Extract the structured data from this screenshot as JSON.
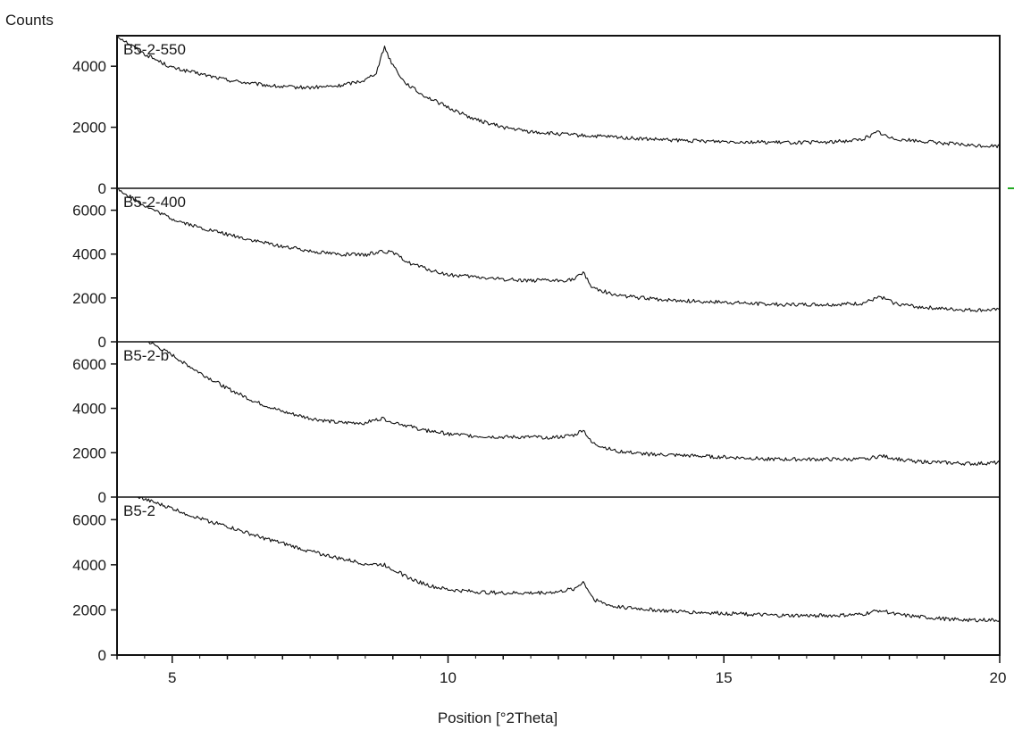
{
  "chart_data": {
    "type": "line",
    "title": "",
    "ylabel": "Counts",
    "xlabel": "Position [°2Theta]",
    "xlim": [
      4,
      20
    ],
    "x_ticks": [
      5,
      10,
      15,
      20
    ],
    "x_tick_labels": [
      "5",
      "10",
      "15",
      "20"
    ],
    "grid": false,
    "legend": "none",
    "series": [
      {
        "name": "B5-2-550",
        "ylim": [
          0,
          5000
        ],
        "y_ticks": [
          0,
          2000,
          4000
        ],
        "y_tick_labels": [
          "0",
          "2000",
          "4000"
        ],
        "points": [
          [
            4.0,
            5000
          ],
          [
            4.5,
            4400
          ],
          [
            5.0,
            3950
          ],
          [
            5.5,
            3750
          ],
          [
            6.0,
            3550
          ],
          [
            6.5,
            3420
          ],
          [
            7.0,
            3320
          ],
          [
            7.5,
            3300
          ],
          [
            8.0,
            3350
          ],
          [
            8.5,
            3550
          ],
          [
            8.7,
            3800
          ],
          [
            8.85,
            4650
          ],
          [
            8.95,
            4200
          ],
          [
            9.2,
            3500
          ],
          [
            9.5,
            3100
          ],
          [
            10.0,
            2650
          ],
          [
            10.5,
            2250
          ],
          [
            11.0,
            2000
          ],
          [
            11.5,
            1850
          ],
          [
            12.0,
            1780
          ],
          [
            12.5,
            1720
          ],
          [
            13.0,
            1680
          ],
          [
            13.5,
            1620
          ],
          [
            14.0,
            1580
          ],
          [
            14.5,
            1550
          ],
          [
            15.0,
            1540
          ],
          [
            15.5,
            1520
          ],
          [
            16.0,
            1500
          ],
          [
            16.5,
            1500
          ],
          [
            17.0,
            1520
          ],
          [
            17.5,
            1600
          ],
          [
            17.8,
            1850
          ],
          [
            18.0,
            1650
          ],
          [
            18.5,
            1550
          ],
          [
            19.0,
            1480
          ],
          [
            19.5,
            1400
          ],
          [
            20.0,
            1380
          ]
        ]
      },
      {
        "name": "B5-2-400",
        "ylim": [
          0,
          7000
        ],
        "y_ticks": [
          0,
          2000,
          4000,
          6000
        ],
        "y_tick_labels": [
          "0",
          "2000",
          "4000",
          "6000"
        ],
        "points": [
          [
            4.0,
            7000
          ],
          [
            4.5,
            6200
          ],
          [
            5.0,
            5600
          ],
          [
            5.5,
            5200
          ],
          [
            6.0,
            4900
          ],
          [
            6.5,
            4600
          ],
          [
            7.0,
            4350
          ],
          [
            7.5,
            4150
          ],
          [
            8.0,
            4000
          ],
          [
            8.5,
            3950
          ],
          [
            8.8,
            4150
          ],
          [
            9.0,
            4050
          ],
          [
            9.3,
            3600
          ],
          [
            9.7,
            3250
          ],
          [
            10.0,
            3050
          ],
          [
            10.5,
            2950
          ],
          [
            11.0,
            2850
          ],
          [
            11.5,
            2800
          ],
          [
            12.0,
            2780
          ],
          [
            12.3,
            2850
          ],
          [
            12.45,
            3200
          ],
          [
            12.6,
            2500
          ],
          [
            13.0,
            2150
          ],
          [
            13.5,
            2000
          ],
          [
            14.0,
            1900
          ],
          [
            14.5,
            1850
          ],
          [
            15.0,
            1800
          ],
          [
            15.5,
            1750
          ],
          [
            16.0,
            1700
          ],
          [
            16.5,
            1700
          ],
          [
            17.0,
            1700
          ],
          [
            17.5,
            1750
          ],
          [
            17.85,
            2050
          ],
          [
            18.1,
            1750
          ],
          [
            18.5,
            1600
          ],
          [
            19.0,
            1500
          ],
          [
            19.5,
            1450
          ],
          [
            20.0,
            1450
          ]
        ]
      },
      {
        "name": "B5-2-b",
        "ylim": [
          0,
          7000
        ],
        "y_ticks": [
          0,
          2000,
          4000,
          6000
        ],
        "y_tick_labels": [
          "0",
          "2000",
          "4000",
          "6000"
        ],
        "points": [
          [
            4.0,
            7600
          ],
          [
            4.5,
            7100
          ],
          [
            5.0,
            6400
          ],
          [
            5.5,
            5600
          ],
          [
            6.0,
            4900
          ],
          [
            6.5,
            4300
          ],
          [
            7.0,
            3850
          ],
          [
            7.5,
            3550
          ],
          [
            8.0,
            3350
          ],
          [
            8.5,
            3350
          ],
          [
            8.8,
            3550
          ],
          [
            9.0,
            3400
          ],
          [
            9.5,
            3050
          ],
          [
            10.0,
            2850
          ],
          [
            10.5,
            2750
          ],
          [
            11.0,
            2700
          ],
          [
            11.5,
            2700
          ],
          [
            12.0,
            2700
          ],
          [
            12.3,
            2800
          ],
          [
            12.45,
            3050
          ],
          [
            12.6,
            2450
          ],
          [
            13.0,
            2100
          ],
          [
            13.5,
            1950
          ],
          [
            14.0,
            1900
          ],
          [
            14.5,
            1850
          ],
          [
            15.0,
            1800
          ],
          [
            15.5,
            1750
          ],
          [
            16.0,
            1700
          ],
          [
            16.5,
            1700
          ],
          [
            17.0,
            1700
          ],
          [
            17.5,
            1700
          ],
          [
            17.85,
            1850
          ],
          [
            18.2,
            1700
          ],
          [
            18.5,
            1600
          ],
          [
            19.0,
            1550
          ],
          [
            19.5,
            1500
          ],
          [
            20.0,
            1550
          ]
        ]
      },
      {
        "name": "B5-2",
        "ylim": [
          0,
          7000
        ],
        "y_ticks": [
          0,
          2000,
          4000,
          6000
        ],
        "y_tick_labels": [
          "0",
          "2000",
          "4000",
          "6000"
        ],
        "points": [
          [
            4.0,
            7400
          ],
          [
            4.5,
            6900
          ],
          [
            5.0,
            6500
          ],
          [
            5.5,
            6050
          ],
          [
            6.0,
            5700
          ],
          [
            6.5,
            5300
          ],
          [
            7.0,
            4950
          ],
          [
            7.5,
            4600
          ],
          [
            8.0,
            4300
          ],
          [
            8.5,
            4050
          ],
          [
            8.85,
            4000
          ],
          [
            9.0,
            3800
          ],
          [
            9.3,
            3400
          ],
          [
            9.7,
            3050
          ],
          [
            10.0,
            2900
          ],
          [
            10.5,
            2800
          ],
          [
            11.0,
            2750
          ],
          [
            11.5,
            2750
          ],
          [
            12.0,
            2800
          ],
          [
            12.3,
            2950
          ],
          [
            12.45,
            3250
          ],
          [
            12.65,
            2450
          ],
          [
            13.0,
            2150
          ],
          [
            13.5,
            2050
          ],
          [
            14.0,
            1950
          ],
          [
            14.5,
            1900
          ],
          [
            15.0,
            1850
          ],
          [
            15.5,
            1800
          ],
          [
            16.0,
            1750
          ],
          [
            16.5,
            1750
          ],
          [
            17.0,
            1750
          ],
          [
            17.5,
            1800
          ],
          [
            17.85,
            2000
          ],
          [
            18.1,
            1800
          ],
          [
            18.5,
            1700
          ],
          [
            19.0,
            1600
          ],
          [
            19.5,
            1550
          ],
          [
            20.0,
            1550
          ]
        ]
      }
    ]
  },
  "colors": {
    "line": "#111111",
    "frame": "#111111",
    "marker": "#22aa22"
  }
}
